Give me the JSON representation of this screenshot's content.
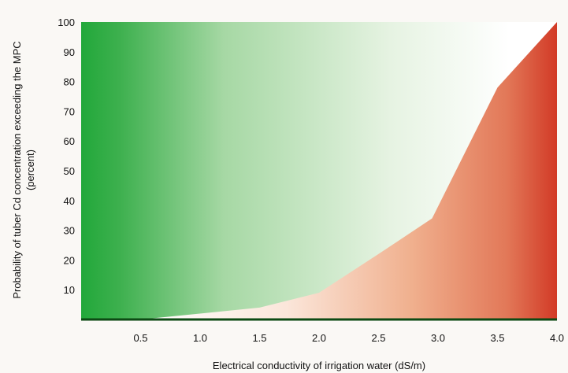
{
  "chart_data": {
    "type": "area",
    "xlabel": "Electrical conductivity of irrigation water (dS/m)",
    "ylabel_line1": "Probability of tuber Cd concentration exceeding the MPC",
    "ylabel_line2": "(percent)",
    "xlim": [
      0,
      4.0
    ],
    "ylim": [
      0,
      100
    ],
    "x_ticks": [
      "0.5",
      "1.0",
      "1.5",
      "2.0",
      "2.5",
      "3.0",
      "3.5",
      "4.0"
    ],
    "x_tick_values": [
      0.5,
      1.0,
      1.5,
      2.0,
      2.5,
      3.0,
      3.5,
      4.0
    ],
    "y_ticks": [
      "10",
      "20",
      "30",
      "40",
      "50",
      "60",
      "70",
      "80",
      "90",
      "100"
    ],
    "y_tick_values": [
      10,
      20,
      30,
      40,
      50,
      60,
      70,
      80,
      90,
      100
    ],
    "grid": false,
    "series": [
      {
        "x": [
          0.5,
          1.5,
          2.0,
          2.5,
          2.95,
          3.5,
          4.0
        ],
        "values": [
          0,
          4,
          9,
          22,
          34,
          78,
          100
        ]
      }
    ],
    "colors": {
      "safe_gradient_start": "#22a83a",
      "safe_gradient_end": "#ffffff",
      "risk_gradient_start": "#ffffff",
      "risk_gradient_end": "#d23a26",
      "axis_line": "#0d4a14"
    }
  }
}
